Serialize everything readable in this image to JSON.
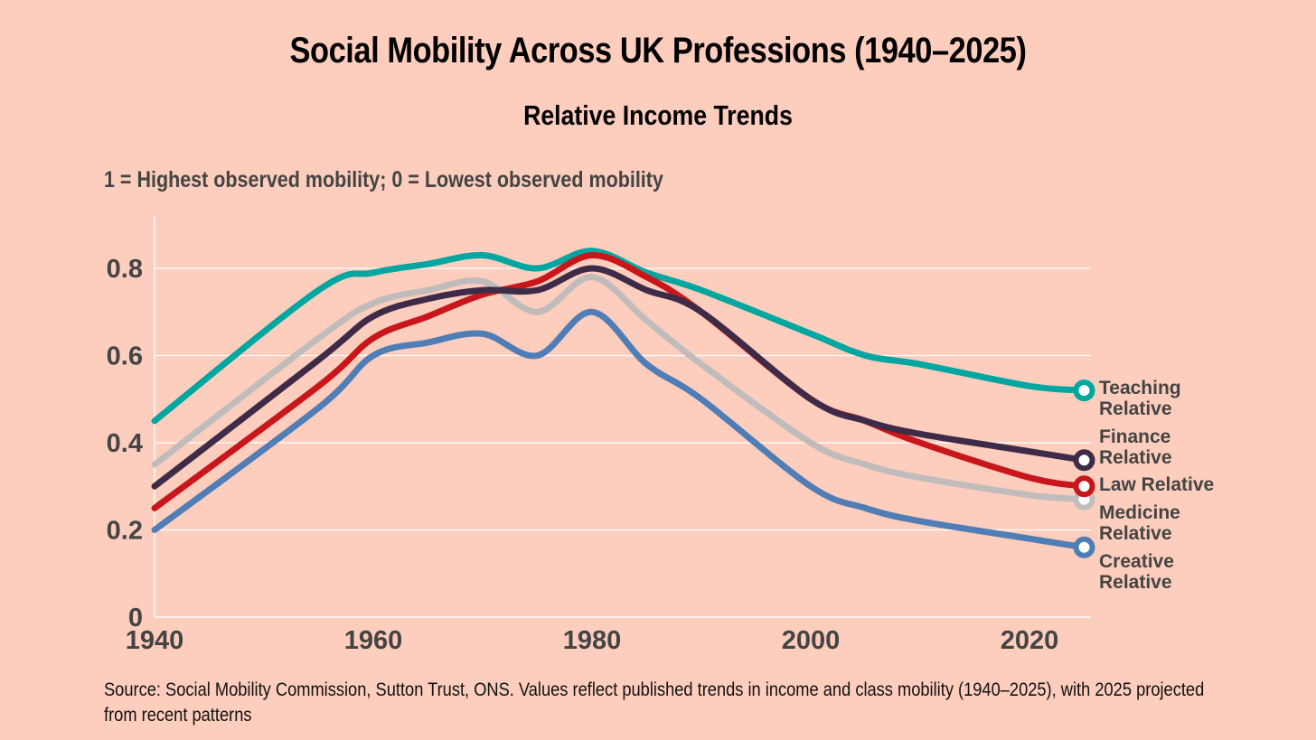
{
  "chart_data": {
    "type": "line",
    "title": "Social Mobility Across UK Professions (1940–2025)",
    "subtitle": "Relative Income Trends",
    "note": "1 = Highest observed mobility; 0 = Lowest observed mobility",
    "xlabel": "",
    "ylabel": "",
    "xlim": [
      1940,
      2026
    ],
    "ylim": [
      0,
      0.9
    ],
    "x_ticks": [
      1940,
      1960,
      1980,
      2000,
      2020
    ],
    "y_ticks": [
      0,
      0.2,
      0.4,
      0.6,
      0.8
    ],
    "y_tick_labels": [
      "0",
      "0.2",
      "0.4",
      "0.6",
      "0.8"
    ],
    "grid": "horizontal",
    "legend": "end-of-line labels, right",
    "x": [
      1940,
      1955,
      1960,
      1965,
      1970,
      1975,
      1980,
      1985,
      1990,
      2000,
      2005,
      2010,
      2020,
      2025
    ],
    "series": [
      {
        "name": "Teaching Relative",
        "label_lines": [
          "Teaching",
          "Relative"
        ],
        "color": "#00a6a0",
        "values": [
          0.45,
          0.75,
          0.79,
          0.81,
          0.83,
          0.8,
          0.84,
          0.79,
          0.75,
          0.65,
          0.6,
          0.58,
          0.53,
          0.52
        ]
      },
      {
        "name": "Medicine Relative",
        "label_lines": [
          "Medicine",
          "Relative"
        ],
        "color": "#c0bcbc",
        "values": [
          0.35,
          0.64,
          0.72,
          0.75,
          0.77,
          0.7,
          0.78,
          0.68,
          0.58,
          0.4,
          0.35,
          0.32,
          0.28,
          0.27
        ]
      },
      {
        "name": "Law Relative",
        "label_lines": [
          "Law Relative"
        ],
        "color": "#c8161b",
        "values": [
          0.25,
          0.53,
          0.64,
          0.69,
          0.74,
          0.77,
          0.83,
          0.78,
          0.7,
          0.5,
          0.45,
          0.4,
          0.32,
          0.3
        ]
      },
      {
        "name": "Finance Relative",
        "label_lines": [
          "Finance",
          "Relative"
        ],
        "color": "#3d2b48",
        "values": [
          0.3,
          0.59,
          0.69,
          0.73,
          0.75,
          0.75,
          0.8,
          0.75,
          0.7,
          0.5,
          0.45,
          0.42,
          0.38,
          0.36
        ]
      },
      {
        "name": "Creative Relative",
        "label_lines": [
          "Creative",
          "Relative"
        ],
        "color": "#4f7db5",
        "values": [
          0.2,
          0.48,
          0.6,
          0.63,
          0.65,
          0.6,
          0.7,
          0.58,
          0.5,
          0.3,
          0.25,
          0.22,
          0.18,
          0.16
        ]
      }
    ],
    "source": "Source: Social Mobility Commission, Sutton Trust, ONS. Values reflect published trends in income and class mobility (1940–2025), with 2025 projected from recent patterns"
  }
}
